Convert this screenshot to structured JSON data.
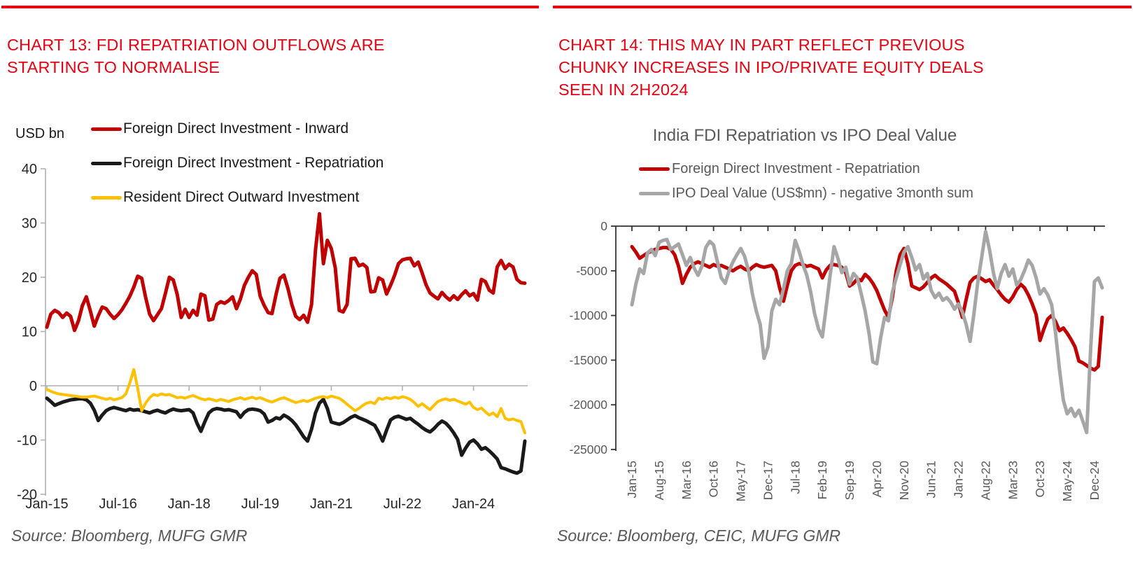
{
  "colors": {
    "accent_red": "#e60012",
    "series_inward_red": "#c00000",
    "series_repatriation_black": "#1a1a1a",
    "series_resident_yellow": "#ffc000",
    "series_ipo_gray": "#a6a6a6",
    "left_axis_text": "#262626",
    "muted_text": "#595959",
    "left_axis_line": "#b0b0b0",
    "right_axis_line": "#333333"
  },
  "left_panel": {
    "heading": "CHART 13: FDI REPATRIATION OUTFLOWS ARE STARTING TO NORMALISE",
    "heading_lines": [
      "CHART 13: FDI REPATRIATION OUTFLOWS ARE",
      "STARTING TO NORMALISE"
    ],
    "axis_unit": "USD bn",
    "source": "Source: Bloomberg, MUFG GMR"
  },
  "right_panel": {
    "heading": "CHART 14: THIS MAY IN PART REFLECT PREVIOUS CHUNKY INCREASES IN IPO/PRIVATE EQUITY DEALS SEEN IN 2H2024",
    "heading_lines": [
      "CHART 14: THIS MAY IN PART REFLECT PREVIOUS",
      "CHUNKY INCREASES IN IPO/PRIVATE EQUITY DEALS",
      "SEEN IN 2H2024"
    ],
    "chart_title": "India FDI Repatriation vs IPO Deal Value",
    "source": "Source: Bloomberg, CEIC, MUFG GMR"
  },
  "chart_data": [
    {
      "type": "line",
      "panel": "left",
      "y_unit": "USD bn",
      "x_frequency": "monthly",
      "x_range": [
        "Jan-15",
        "Feb-25"
      ],
      "ylim": [
        -20,
        40
      ],
      "y_ticks": [
        40,
        30,
        20,
        10,
        0,
        -10,
        -20
      ],
      "x_tick_indices": [
        0,
        18,
        36,
        54,
        72,
        90,
        108
      ],
      "x_tick_labels": [
        "Jan-15",
        "Jul-16",
        "Jan-18",
        "Jul-19",
        "Jan-21",
        "Jul-22",
        "Jan-24"
      ],
      "grid": false,
      "legend_position": "top",
      "series": [
        {
          "name": "Foreign Direct Investment - Inward",
          "color": "#c00000",
          "values": [
            10.8,
            13.2,
            13.9,
            13.5,
            12.6,
            13.4,
            12.8,
            10.2,
            12.0,
            14.8,
            16.4,
            13.8,
            11.0,
            12.9,
            14.5,
            14.2,
            13.2,
            12.4,
            13.1,
            14.0,
            15.2,
            16.5,
            18.2,
            20.2,
            19.8,
            16.3,
            13.2,
            12.0,
            13.1,
            14.2,
            17.0,
            20.0,
            19.5,
            16.8,
            12.6,
            14.1,
            12.6,
            13.9,
            13.0,
            16.9,
            16.6,
            12.1,
            12.3,
            15.0,
            15.5,
            15.2,
            15.7,
            16.4,
            14.2,
            16.0,
            18.5,
            20.0,
            21.2,
            20.5,
            16.5,
            14.8,
            13.5,
            13.3,
            16.8,
            19.8,
            20.4,
            18.0,
            15.0,
            12.8,
            12.2,
            13.0,
            11.7,
            15.0,
            25.0,
            31.7,
            22.5,
            26.8,
            25.3,
            21.7,
            13.9,
            13.6,
            15.0,
            23.4,
            23.5,
            22.1,
            22.4,
            21.8,
            17.3,
            17.4,
            19.9,
            19.5,
            16.9,
            18.5,
            20.3,
            22.5,
            23.2,
            23.4,
            23.5,
            22.1,
            22.8,
            20.8,
            18.6,
            17.1,
            16.5,
            16.0,
            17.2,
            16.4,
            15.8,
            16.6,
            15.9,
            16.8,
            17.5,
            16.6,
            17.0,
            15.8,
            19.6,
            19.2,
            17.6,
            17.1,
            21.9,
            23.1,
            21.6,
            22.4,
            21.9,
            19.6,
            19.0,
            18.9
          ]
        },
        {
          "name": "Foreign Direct Investment -  Repatriation",
          "color": "#1a1a1a",
          "values": [
            -2.3,
            -2.9,
            -3.6,
            -3.3,
            -3.0,
            -2.8,
            -2.6,
            -2.5,
            -2.4,
            -2.4,
            -2.6,
            -3.2,
            -4.5,
            -6.4,
            -5.4,
            -4.6,
            -4.2,
            -4.0,
            -4.2,
            -4.4,
            -4.6,
            -4.3,
            -4.5,
            -4.4,
            -4.6,
            -4.8,
            -5.0,
            -4.7,
            -4.5,
            -4.8,
            -5.0,
            -4.6,
            -4.3,
            -4.5,
            -4.6,
            -4.5,
            -4.4,
            -5.0,
            -6.9,
            -8.4,
            -6.6,
            -5.0,
            -4.4,
            -4.2,
            -4.3,
            -4.5,
            -4.4,
            -4.6,
            -4.8,
            -5.8,
            -4.9,
            -4.4,
            -4.3,
            -4.4,
            -4.6,
            -5.2,
            -6.7,
            -6.4,
            -5.9,
            -6.1,
            -5.4,
            -5.8,
            -6.4,
            -7.2,
            -8.3,
            -9.4,
            -10.2,
            -8.0,
            -5.0,
            -3.2,
            -2.5,
            -4.2,
            -6.7,
            -6.9,
            -7.1,
            -6.8,
            -6.3,
            -5.8,
            -5.5,
            -5.9,
            -6.2,
            -6.5,
            -6.9,
            -7.3,
            -8.6,
            -10.2,
            -8.2,
            -6.3,
            -5.8,
            -5.6,
            -5.9,
            -6.2,
            -6.0,
            -6.6,
            -7.1,
            -7.7,
            -8.2,
            -8.5,
            -7.9,
            -7.1,
            -6.5,
            -6.9,
            -7.7,
            -8.7,
            -9.9,
            -12.8,
            -11.5,
            -10.4,
            -10.0,
            -10.7,
            -11.7,
            -11.4,
            -12.0,
            -12.7,
            -13.5,
            -15.1,
            -15.3,
            -15.6,
            -15.9,
            -16.1,
            -15.7,
            -10.2
          ]
        },
        {
          "name": "Resident Direct Outward Investment",
          "color": "#ffc000",
          "values": [
            -0.7,
            -1.0,
            -1.3,
            -1.5,
            -1.6,
            -1.7,
            -1.8,
            -1.9,
            -2.0,
            -2.1,
            -2.1,
            -2.0,
            -1.9,
            -2.1,
            -2.3,
            -2.5,
            -2.3,
            -2.6,
            -2.4,
            -2.2,
            -1.5,
            0.5,
            3.0,
            -0.5,
            -4.6,
            -3.2,
            -2.2,
            -1.6,
            -1.8,
            -1.5,
            -1.7,
            -1.6,
            -1.9,
            -2.2,
            -2.1,
            -2.3,
            -2.0,
            -1.8,
            -2.1,
            -2.4,
            -2.6,
            -2.4,
            -2.6,
            -2.8,
            -2.5,
            -2.7,
            -2.9,
            -2.6,
            -2.4,
            -2.2,
            -2.5,
            -2.3,
            -2.1,
            -2.4,
            -2.2,
            -2.5,
            -2.8,
            -3.0,
            -2.7,
            -2.4,
            -2.2,
            -2.5,
            -2.8,
            -3.1,
            -2.9,
            -2.7,
            -2.9,
            -2.6,
            -2.3,
            -2.1,
            -2.0,
            -2.2,
            -1.9,
            -2.1,
            -2.3,
            -2.8,
            -3.4,
            -4.0,
            -4.6,
            -4.2,
            -3.6,
            -3.2,
            -3.0,
            -3.3,
            -2.3,
            -2.5,
            -2.2,
            -2.4,
            -2.1,
            -2.3,
            -2.0,
            -2.2,
            -2.5,
            -3.1,
            -3.8,
            -3.3,
            -3.9,
            -4.4,
            -3.6,
            -2.9,
            -2.6,
            -2.4,
            -2.7,
            -2.5,
            -2.8,
            -3.1,
            -3.4,
            -3.0,
            -4.0,
            -4.4,
            -4.1,
            -4.8,
            -5.4,
            -5.0,
            -5.7,
            -4.2,
            -6.0,
            -6.3,
            -6.1,
            -6.4,
            -6.6,
            -8.7
          ]
        }
      ]
    },
    {
      "type": "line",
      "panel": "right",
      "title": "India FDI Repatriation vs IPO Deal Value",
      "y_unit": "US$mn",
      "x_frequency": "monthly",
      "x_range": [
        "Jan-15",
        "Feb-25"
      ],
      "ylim": [
        -25000,
        0
      ],
      "y_ticks": [
        0,
        -5000,
        -10000,
        -15000,
        -20000,
        -25000
      ],
      "x_tick_indices": [
        0,
        7,
        14,
        21,
        28,
        35,
        42,
        49,
        56,
        63,
        70,
        77,
        84,
        91,
        98,
        105,
        112,
        119
      ],
      "x_tick_labels": [
        "Jan-15",
        "Aug-15",
        "Mar-16",
        "Oct-16",
        "May-17",
        "Dec-17",
        "Jul-18",
        "Feb-19",
        "Sep-19",
        "Apr-20",
        "Nov-20",
        "Jun-21",
        "Jan-22",
        "Aug-22",
        "Mar-23",
        "Oct-23",
        "May-24",
        "Dec-24"
      ],
      "grid": false,
      "legend_position": "top",
      "series": [
        {
          "name": "Foreign Direct Investment -  Repatriation",
          "color": "#c00000",
          "values": [
            -2300,
            -2900,
            -3600,
            -3300,
            -3000,
            -2800,
            -2600,
            -2500,
            -2400,
            -2400,
            -2600,
            -3200,
            -4500,
            -6400,
            -5400,
            -4600,
            -4200,
            -4000,
            -4200,
            -4400,
            -4600,
            -4300,
            -4500,
            -4400,
            -4600,
            -4800,
            -5000,
            -4700,
            -4500,
            -4800,
            -5000,
            -4600,
            -4300,
            -4500,
            -4600,
            -4500,
            -4400,
            -5000,
            -6900,
            -8400,
            -6600,
            -5000,
            -4400,
            -4200,
            -4300,
            -4500,
            -4400,
            -4600,
            -4800,
            -5800,
            -4900,
            -4400,
            -4300,
            -4400,
            -4600,
            -5200,
            -6700,
            -6400,
            -5900,
            -6100,
            -5400,
            -5800,
            -6400,
            -7200,
            -8300,
            -9400,
            -10200,
            -8000,
            -5000,
            -3200,
            -2500,
            -4200,
            -6700,
            -6900,
            -7100,
            -6800,
            -6300,
            -5800,
            -5500,
            -5900,
            -6200,
            -6500,
            -6900,
            -7300,
            -8600,
            -10200,
            -8200,
            -6300,
            -5800,
            -5600,
            -5900,
            -6200,
            -6000,
            -6600,
            -7100,
            -7700,
            -8200,
            -8500,
            -7900,
            -7100,
            -6500,
            -6900,
            -7700,
            -8700,
            -9900,
            -12800,
            -11500,
            -10400,
            -10000,
            -10700,
            -11700,
            -11400,
            -12000,
            -12700,
            -13500,
            -15100,
            -15300,
            -15600,
            -15900,
            -16100,
            -15700,
            -10200
          ]
        },
        {
          "name": "IPO Deal Value (US$mn) - negative 3month sum",
          "color": "#a6a6a6",
          "values": [
            -8800,
            -6500,
            -4800,
            -5300,
            -3000,
            -2600,
            -3300,
            -1800,
            -1600,
            -1500,
            -2600,
            -2300,
            -2000,
            -3200,
            -4400,
            -3500,
            -4700,
            -5500,
            -4500,
            -2400,
            -1700,
            -2100,
            -4000,
            -5800,
            -6400,
            -5000,
            -4000,
            -3200,
            -2500,
            -3400,
            -5000,
            -7600,
            -9500,
            -11000,
            -14800,
            -13500,
            -9500,
            -8200,
            -8800,
            -7000,
            -5000,
            -4200,
            -1600,
            -2800,
            -4300,
            -5500,
            -7400,
            -9800,
            -11500,
            -12400,
            -9000,
            -5500,
            -2300,
            -3600,
            -5200,
            -4600,
            -6500,
            -5300,
            -5800,
            -7600,
            -9500,
            -12000,
            -15200,
            -15400,
            -12500,
            -10200,
            -10600,
            -7400,
            -5800,
            -4300,
            -2900,
            -2300,
            -3500,
            -4900,
            -4300,
            -5900,
            -5300,
            -7200,
            -8000,
            -7500,
            -8300,
            -8000,
            -8500,
            -9300,
            -8700,
            -9600,
            -11000,
            -12900,
            -9800,
            -6200,
            -3500,
            -600,
            -2600,
            -5200,
            -7000,
            -5300,
            -4300,
            -5600,
            -4800,
            -6600,
            -6000,
            -5000,
            -3800,
            -4400,
            -5800,
            -7600,
            -7000,
            -7700,
            -8800,
            -12000,
            -16000,
            -19500,
            -21000,
            -20400,
            -21300,
            -20600,
            -21800,
            -23100,
            -14000,
            -6200,
            -5800,
            -6900
          ]
        }
      ]
    }
  ]
}
